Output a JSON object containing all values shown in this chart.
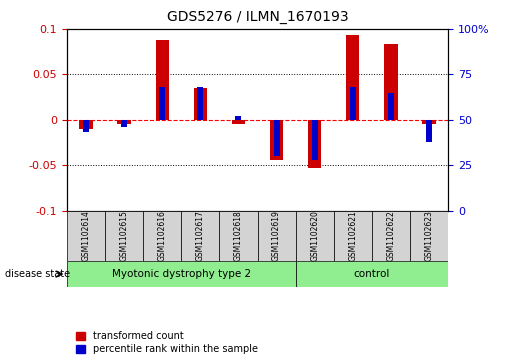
{
  "title": "GDS5276 / ILMN_1670193",
  "samples": [
    "GSM1102614",
    "GSM1102615",
    "GSM1102616",
    "GSM1102617",
    "GSM1102618",
    "GSM1102619",
    "GSM1102620",
    "GSM1102621",
    "GSM1102622",
    "GSM1102623"
  ],
  "red_values": [
    -0.01,
    -0.005,
    0.088,
    0.035,
    -0.005,
    -0.044,
    -0.053,
    0.093,
    0.083,
    -0.005
  ],
  "blue_values_pct": [
    43,
    46,
    68,
    68,
    52,
    30,
    28,
    68,
    65,
    38
  ],
  "groups": [
    {
      "label": "Myotonic dystrophy type 2",
      "start": 0,
      "end": 6,
      "color": "#90EE90"
    },
    {
      "label": "control",
      "start": 6,
      "end": 10,
      "color": "#90EE90"
    }
  ],
  "ylim": [
    -0.1,
    0.1
  ],
  "yticks_left": [
    -0.1,
    -0.05,
    0.0,
    0.05,
    0.1
  ],
  "yticks_right_pct": [
    0,
    25,
    50,
    75,
    100
  ],
  "bar_color_red": "#CC0000",
  "bar_color_blue": "#0000CC",
  "bg_color": "#FFFFFF",
  "plot_bg": "#FFFFFF",
  "label_color_left": "#CC0000",
  "label_color_right": "#0000CC",
  "disease_state_label": "disease state",
  "legend_red": "transformed count",
  "legend_blue": "percentile rank within the sample",
  "bar_width": 0.35
}
